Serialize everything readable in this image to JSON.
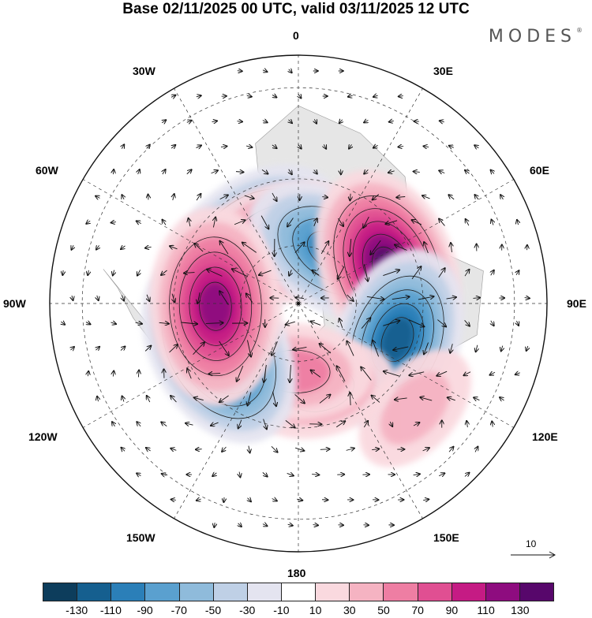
{
  "title": "Base 02/11/2025 00 UTC, valid 03/11/2025 12 UTC",
  "logo": {
    "text": "MODES",
    "mark": "®"
  },
  "longitude_labels": {
    "top": "0",
    "deg30e": "30E",
    "deg60e": "60E",
    "deg90e": "90E",
    "deg120e": "120E",
    "deg150e": "150E",
    "bottom": "180",
    "deg150w": "150W",
    "deg120w": "120W",
    "deg90w": "90W",
    "deg60w": "60W",
    "deg30w": "30W"
  },
  "vector_scale_label": "10",
  "colorbar": {
    "colors": [
      "#0d3d5c",
      "#155f8f",
      "#2b7fb8",
      "#5aa0cf",
      "#8fbbdb",
      "#bfd0e6",
      "#e4e4f0",
      "#ffffff",
      "#fad9df",
      "#f5b3c2",
      "#ee7ea3",
      "#e04f92",
      "#c51b84",
      "#8e0c7f",
      "#57076b"
    ],
    "tick_labels": [
      "-130",
      "-110",
      "-90",
      "-70",
      "-50",
      "-30",
      "-10",
      "10",
      "30",
      "50",
      "70",
      "90",
      "110",
      "130"
    ]
  },
  "anomaly_centers": [
    {
      "name": "atlantic-low",
      "lon": -38,
      "lat": 52,
      "value": -125
    },
    {
      "name": "north-atlantic-high",
      "lon": -5,
      "lat": 58,
      "value": 105
    },
    {
      "name": "eurasia-low",
      "lon": 32,
      "lat": 58,
      "value": -100
    },
    {
      "name": "siberia-high",
      "lon": 68,
      "lat": 42,
      "value": 130
    },
    {
      "name": "east-asia-low",
      "lon": 110,
      "lat": 38,
      "value": -110
    },
    {
      "name": "japan-high",
      "lon": 132,
      "lat": 18,
      "value": 40
    },
    {
      "name": "pacific-high",
      "lon": 165,
      "lat": 45,
      "value": 55
    },
    {
      "name": "alaska-high",
      "lon": -178,
      "lat": 55,
      "value": 60
    },
    {
      "name": "west-canada-low",
      "lon": -120,
      "lat": 44,
      "value": -130
    },
    {
      "name": "pacific-northwest-high",
      "lon": -92,
      "lat": 48,
      "value": 125
    }
  ]
}
